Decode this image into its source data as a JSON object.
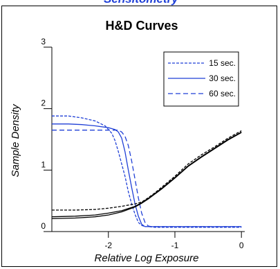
{
  "page": {
    "clipped_header": "Sensitometry"
  },
  "chart_data": {
    "type": "line",
    "title": "H&D Curves",
    "xlabel": "Relative Log Exposure",
    "ylabel": "Sample Density",
    "xlim": [
      -2.85,
      0.05
    ],
    "ylim": [
      0,
      3
    ],
    "xticks": [
      -2,
      -1,
      0
    ],
    "xtick_labels": [
      "-2",
      "-1",
      "0"
    ],
    "yticks": [
      0,
      1,
      2,
      3
    ],
    "ytick_labels": [
      "0",
      "1",
      "2",
      "3"
    ],
    "legend_position": "top-right",
    "series": [
      {
        "name": "15 sec.",
        "color": "#1f3fd6",
        "dash": "short",
        "x": [
          -2.85,
          -2.6,
          -2.4,
          -2.2,
          -2.05,
          -1.95,
          -1.9,
          -1.85,
          -1.8,
          -1.75,
          -1.7,
          -1.65,
          -1.6,
          -1.55,
          -1.5,
          -1.45,
          -1.4,
          -1.3,
          -1.0,
          -0.5,
          0.0
        ],
        "y": [
          1.88,
          1.88,
          1.85,
          1.8,
          1.72,
          1.6,
          1.48,
          1.3,
          1.1,
          0.9,
          0.65,
          0.45,
          0.28,
          0.15,
          0.1,
          0.08,
          0.08,
          0.07,
          0.07,
          0.07,
          0.07
        ]
      },
      {
        "name": "30 sec.",
        "color": "#1f3fd6",
        "dash": "solid",
        "x": [
          -2.85,
          -2.6,
          -2.4,
          -2.2,
          -2.0,
          -1.9,
          -1.85,
          -1.8,
          -1.75,
          -1.7,
          -1.65,
          -1.6,
          -1.55,
          -1.5,
          -1.45,
          -1.4,
          -1.0,
          -0.5,
          0.0
        ],
        "y": [
          1.75,
          1.75,
          1.74,
          1.72,
          1.69,
          1.66,
          1.62,
          1.52,
          1.3,
          1.0,
          0.72,
          0.45,
          0.25,
          0.12,
          0.08,
          0.08,
          0.08,
          0.08,
          0.08
        ]
      },
      {
        "name": "60 sec.",
        "color": "#1f3fd6",
        "dash": "long",
        "x": [
          -2.85,
          -2.5,
          -2.2,
          -2.0,
          -1.9,
          -1.85,
          -1.8,
          -1.75,
          -1.7,
          -1.65,
          -1.6,
          -1.55,
          -1.5,
          -1.45,
          -1.4,
          -1.35,
          -1.0,
          -0.5,
          0.0
        ],
        "y": [
          1.65,
          1.65,
          1.65,
          1.65,
          1.65,
          1.65,
          1.62,
          1.55,
          1.4,
          1.15,
          0.85,
          0.55,
          0.3,
          0.15,
          0.09,
          0.08,
          0.08,
          0.08,
          0.08
        ]
      },
      {
        "name": "",
        "color": "#000000",
        "dash": "short",
        "x": [
          -2.85,
          -2.5,
          -2.2,
          -2.0,
          -1.8,
          -1.6,
          -1.5,
          -1.4,
          -1.3,
          -1.2,
          -1.0,
          -0.8,
          -0.6,
          -0.4,
          -0.2,
          0.0
        ],
        "y": [
          0.35,
          0.35,
          0.36,
          0.38,
          0.41,
          0.45,
          0.48,
          0.55,
          0.63,
          0.72,
          0.9,
          1.1,
          1.25,
          1.38,
          1.52,
          1.64
        ]
      },
      {
        "name": "",
        "color": "#000000",
        "dash": "solid",
        "x": [
          -2.85,
          -2.5,
          -2.2,
          -2.0,
          -1.8,
          -1.6,
          -1.5,
          -1.4,
          -1.3,
          -1.2,
          -1.0,
          -0.8,
          -0.6,
          -0.4,
          -0.2,
          0.0
        ],
        "y": [
          0.24,
          0.25,
          0.27,
          0.3,
          0.34,
          0.41,
          0.47,
          0.54,
          0.62,
          0.7,
          0.88,
          1.07,
          1.22,
          1.36,
          1.5,
          1.62
        ]
      },
      {
        "name": "",
        "color": "#000000",
        "dash": "solid",
        "x": [
          -2.85,
          -2.5,
          -2.2,
          -2.0,
          -1.8,
          -1.6,
          -1.5,
          -1.4,
          -1.3,
          -1.2,
          -1.0,
          -0.8,
          -0.6,
          -0.4,
          -0.2,
          0.0
        ],
        "y": [
          0.21,
          0.22,
          0.24,
          0.27,
          0.32,
          0.4,
          0.46,
          0.53,
          0.61,
          0.69,
          0.87,
          1.06,
          1.21,
          1.35,
          1.49,
          1.61
        ]
      }
    ]
  }
}
